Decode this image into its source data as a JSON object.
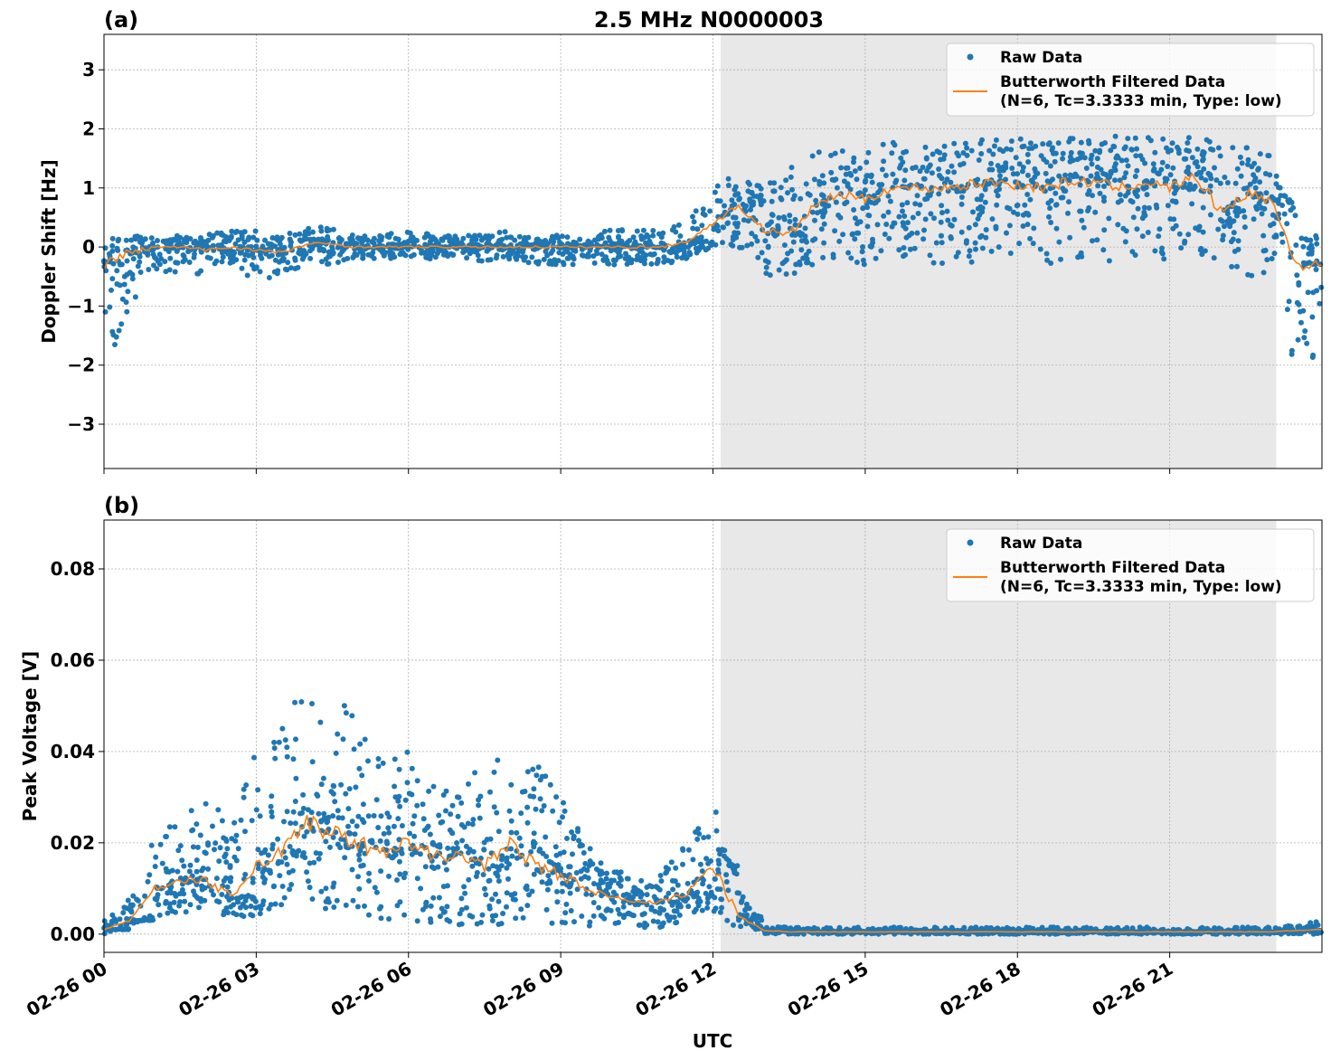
{
  "chart_data": [
    {
      "type": "scatter",
      "panel_label": "(a)",
      "title": "2.5 MHz N0000003",
      "ylabel": "Doppler Shift [Hz]",
      "xlabel": "",
      "xlim_hours": [
        0,
        24
      ],
      "ylim": [
        -3.75,
        3.6
      ],
      "yticks": [
        -3,
        -2,
        -1,
        0,
        1,
        2,
        3
      ],
      "ytick_labels": [
        "−3",
        "−2",
        "−1",
        "0",
        "1",
        "2",
        "3"
      ],
      "grid": true,
      "legend_position": "upper right",
      "shaded_region_hours": [
        12.15,
        23.1
      ],
      "x_hours": [
        0,
        0.5,
        1,
        1.5,
        2,
        2.5,
        3,
        3.5,
        4,
        4.5,
        5,
        5.5,
        6,
        6.5,
        7,
        7.5,
        8,
        8.5,
        9,
        9.5,
        10,
        10.5,
        11,
        11.5,
        12,
        12.5,
        13,
        13.5,
        14,
        14.5,
        15,
        15.5,
        16,
        16.5,
        17,
        17.5,
        18,
        18.5,
        19,
        19.5,
        20,
        20.5,
        21,
        21.5,
        22,
        22.5,
        23,
        23.5,
        24
      ],
      "series": [
        {
          "name": "Raw Data",
          "kind": "scatter-band",
          "lower": [
            -2.4,
            -1.0,
            -0.4,
            -0.5,
            -0.6,
            -0.4,
            -0.6,
            -0.5,
            -0.3,
            -0.3,
            -0.2,
            -0.2,
            -0.2,
            -0.2,
            -0.2,
            -0.3,
            -0.2,
            -0.3,
            -0.3,
            -0.3,
            -0.3,
            -0.3,
            -0.3,
            -0.2,
            0.0,
            0.0,
            -0.5,
            -0.5,
            -0.3,
            -0.2,
            -0.3,
            -0.3,
            -0.3,
            -0.3,
            -0.3,
            -0.3,
            -0.3,
            -0.3,
            -0.3,
            -0.3,
            -0.3,
            -0.3,
            -0.3,
            -0.3,
            -0.3,
            -0.5,
            -0.5,
            -2.2,
            -2.0
          ],
          "upper": [
            0.2,
            0.2,
            0.15,
            0.2,
            0.2,
            0.3,
            0.3,
            0.2,
            0.4,
            0.3,
            0.2,
            0.2,
            0.3,
            0.2,
            0.2,
            0.2,
            0.3,
            0.2,
            0.2,
            0.2,
            0.3,
            0.3,
            0.3,
            0.5,
            1.0,
            1.3,
            1.0,
            1.4,
            1.6,
            1.7,
            1.7,
            1.8,
            1.8,
            1.8,
            1.8,
            1.9,
            1.9,
            1.9,
            1.9,
            1.9,
            1.9,
            1.9,
            1.9,
            1.9,
            1.8,
            1.7,
            1.6,
            0.3,
            0.2
          ]
        },
        {
          "name": "Butterworth Filtered Data\n(N=6, Tc=3.3333 min, Type: low)",
          "kind": "line",
          "values": [
            -0.3,
            -0.1,
            0,
            0,
            -0.05,
            0,
            -0.05,
            -0.1,
            0.05,
            0.05,
            0,
            0,
            0,
            0,
            0,
            0,
            0,
            0,
            0,
            0,
            0,
            0,
            0,
            0.1,
            0.4,
            0.7,
            0.3,
            0.2,
            0.7,
            0.9,
            0.8,
            1.0,
            1.0,
            1.0,
            1.05,
            1.1,
            1.05,
            1.0,
            1.1,
            1.1,
            1.0,
            1.1,
            1.0,
            1.2,
            0.6,
            0.9,
            0.8,
            -0.3,
            -0.3
          ]
        }
      ]
    },
    {
      "type": "scatter",
      "panel_label": "(b)",
      "title": "",
      "ylabel": "Peak Voltage [V]",
      "xlabel": "UTC",
      "xlim_hours": [
        0,
        24
      ],
      "ylim": [
        -0.004,
        0.0907
      ],
      "yticks": [
        0,
        0.02,
        0.04,
        0.06,
        0.08
      ],
      "ytick_labels": [
        "0.00",
        "0.02",
        "0.04",
        "0.06",
        "0.08"
      ],
      "xtick_labels": [
        "02-26 00",
        "02-26 03",
        "02-26 06",
        "02-26 09",
        "02-26 12",
        "02-26 15",
        "02-26 18",
        "02-26 21"
      ],
      "xtick_hours": [
        0,
        3,
        6,
        9,
        12,
        15,
        18,
        21
      ],
      "grid": true,
      "legend_position": "upper right",
      "shaded_region_hours": [
        12.15,
        23.1
      ],
      "x_hours": [
        0,
        0.5,
        1,
        1.5,
        2,
        2.5,
        3,
        3.5,
        4,
        4.5,
        5,
        5.5,
        6,
        6.5,
        7,
        7.5,
        8,
        8.5,
        9,
        9.5,
        10,
        10.5,
        11,
        11.5,
        12,
        12.5,
        13,
        13.5,
        14,
        14.5,
        15,
        15.5,
        16,
        16.5,
        17,
        17.5,
        18,
        18.5,
        19,
        19.5,
        20,
        20.5,
        21,
        21.5,
        22,
        22.5,
        23,
        23.5,
        24
      ],
      "series": [
        {
          "name": "Raw Data",
          "kind": "scatter-band",
          "lower": [
            0,
            0.002,
            0.004,
            0.004,
            0.005,
            0.003,
            0.004,
            0.006,
            0.006,
            0.005,
            0.004,
            0.003,
            0.003,
            0.002,
            0.002,
            0.002,
            0.002,
            0.002,
            0.001,
            0.001,
            0.001,
            0.001,
            0.001,
            0.003,
            0.005,
            0.0005,
            0,
            0,
            0,
            0,
            0,
            0,
            0,
            0,
            0,
            0,
            0,
            0,
            0,
            0,
            0,
            0,
            0,
            0,
            0,
            0,
            0,
            0,
            0
          ],
          "upper": [
            0.003,
            0.008,
            0.022,
            0.025,
            0.03,
            0.025,
            0.04,
            0.045,
            0.06,
            0.055,
            0.05,
            0.04,
            0.045,
            0.035,
            0.03,
            0.04,
            0.04,
            0.038,
            0.03,
            0.02,
            0.015,
            0.012,
            0.015,
            0.02,
            0.03,
            0.01,
            0.002,
            0.0015,
            0.0015,
            0.0015,
            0.0015,
            0.0015,
            0.0015,
            0.0015,
            0.0015,
            0.0015,
            0.0015,
            0.0015,
            0.0015,
            0.0015,
            0.0015,
            0.0015,
            0.0015,
            0.0015,
            0.0015,
            0.0015,
            0.0015,
            0.002,
            0.003
          ]
        },
        {
          "name": "Butterworth Filtered Data\n(N=6, Tc=3.3333 min, Type: low)",
          "kind": "line",
          "values": [
            0.001,
            0.003,
            0.01,
            0.012,
            0.012,
            0.008,
            0.015,
            0.018,
            0.025,
            0.022,
            0.02,
            0.018,
            0.02,
            0.017,
            0.017,
            0.015,
            0.02,
            0.015,
            0.013,
            0.01,
            0.008,
            0.007,
            0.007,
            0.009,
            0.015,
            0.004,
            0.0008,
            0.0005,
            0.0005,
            0.0005,
            0.0005,
            0.0005,
            0.0005,
            0.0005,
            0.0005,
            0.0005,
            0.0005,
            0.0005,
            0.0005,
            0.0005,
            0.0005,
            0.0005,
            0.0005,
            0.0005,
            0.0005,
            0.0005,
            0.0005,
            0.0008,
            0.001
          ]
        }
      ]
    }
  ],
  "legend": {
    "raw_label": "Raw Data",
    "filtered_label_line1": "Butterworth Filtered Data",
    "filtered_label_line2": "(N=6, Tc=3.3333 min, Type: low)"
  },
  "colors": {
    "raw": "#1f77b4",
    "filtered": "#ff7f0e",
    "shade": "#e8e8e8"
  }
}
